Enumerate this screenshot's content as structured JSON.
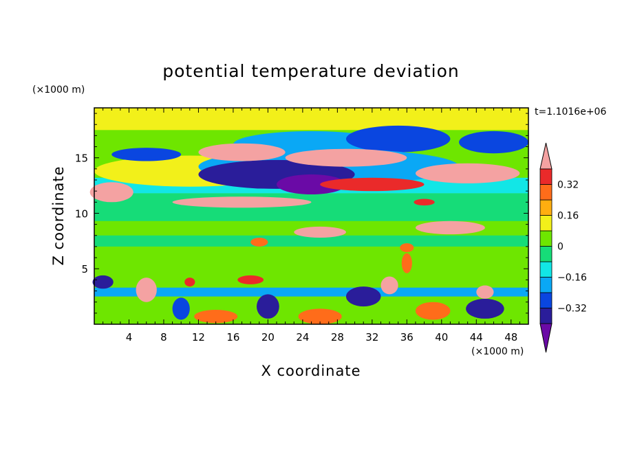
{
  "chart_data": {
    "type": "heatmap",
    "title": "potential temperature deviation",
    "xlabel": "X coordinate",
    "ylabel": "Z coordinate",
    "x_unit": "(×1000 m)",
    "y_unit": "(×1000 m)",
    "time_label": "t=1.1016e+06",
    "xlim": [
      0,
      50
    ],
    "ylim": [
      0,
      19.5
    ],
    "x_ticks": [
      4,
      8,
      12,
      16,
      20,
      24,
      28,
      32,
      36,
      40,
      44,
      48
    ],
    "y_ticks": [
      5,
      10,
      15
    ],
    "colorbar": {
      "labels": [
        "0.32",
        "0.16",
        "0",
        "-0.16",
        "-0.32"
      ],
      "label_values": [
        0.32,
        0.16,
        0,
        -0.16,
        -0.32
      ],
      "levels": [
        -0.4,
        -0.32,
        -0.24,
        -0.16,
        -0.08,
        0,
        0.08,
        0.16,
        0.24,
        0.32,
        0.4
      ],
      "colors": [
        "#6a0aa6",
        "#2a1d9a",
        "#0a46e0",
        "#0aa8f5",
        "#12e6e6",
        "#16dc78",
        "#6ee600",
        "#f2f01a",
        "#ffae10",
        "#ff6c1a",
        "#ea2a2a",
        "#f4a2a2"
      ],
      "extend": "both"
    },
    "features": [
      {
        "shape": "rect",
        "x": [
          0,
          50
        ],
        "z": [
          0,
          19.5
        ],
        "v": 0.05
      },
      {
        "shape": "rect",
        "x": [
          0,
          50
        ],
        "z": [
          4,
          9
        ],
        "v": 0.04
      },
      {
        "shape": "rect",
        "x": [
          0,
          50
        ],
        "z": [
          9.3,
          11.8
        ],
        "v": -0.05
      },
      {
        "shape": "rect",
        "x": [
          0,
          50
        ],
        "z": [
          11.8,
          13.2
        ],
        "v": -0.12
      },
      {
        "shape": "rect",
        "x": [
          0,
          50
        ],
        "z": [
          7,
          8
        ],
        "v": -0.05
      },
      {
        "shape": "rect",
        "x": [
          0,
          50
        ],
        "z": [
          17.5,
          19.5
        ],
        "v": 0.12
      },
      {
        "shape": "ellipse",
        "cx": 11,
        "cz": 13.8,
        "rx": 11,
        "rz": 1.4,
        "v": 0.1
      },
      {
        "shape": "ellipse",
        "cx": 25,
        "cz": 16.2,
        "rx": 9,
        "rz": 1.2,
        "v": -0.2
      },
      {
        "shape": "ellipse",
        "cx": 35,
        "cz": 16.7,
        "rx": 6,
        "rz": 1.2,
        "v": -0.25
      },
      {
        "shape": "ellipse",
        "cx": 46,
        "cz": 16.4,
        "rx": 4,
        "rz": 1.0,
        "v": -0.25
      },
      {
        "shape": "ellipse",
        "cx": 6,
        "cz": 15.3,
        "rx": 4,
        "rz": 0.6,
        "v": -0.3
      },
      {
        "shape": "ellipse",
        "cx": 27,
        "cz": 14.2,
        "rx": 15,
        "rz": 1.6,
        "v": -0.2
      },
      {
        "shape": "ellipse",
        "cx": 21,
        "cz": 13.5,
        "rx": 9,
        "rz": 1.3,
        "v": -0.36
      },
      {
        "shape": "ellipse",
        "cx": 25,
        "cz": 12.6,
        "rx": 4,
        "rz": 0.9,
        "v": -0.42
      },
      {
        "shape": "ellipse",
        "cx": 17,
        "cz": 15.5,
        "rx": 5,
        "rz": 0.8,
        "v": 0.4
      },
      {
        "shape": "ellipse",
        "cx": 29,
        "cz": 15.0,
        "rx": 7,
        "rz": 0.8,
        "v": 0.4
      },
      {
        "shape": "ellipse",
        "cx": 43,
        "cz": 13.6,
        "rx": 6,
        "rz": 0.9,
        "v": 0.4
      },
      {
        "shape": "ellipse",
        "cx": 2,
        "cz": 11.9,
        "rx": 2.5,
        "rz": 0.9,
        "v": 0.4
      },
      {
        "shape": "ellipse",
        "cx": 32,
        "cz": 12.6,
        "rx": 6,
        "rz": 0.6,
        "v": 0.36
      },
      {
        "shape": "ellipse",
        "cx": 17,
        "cz": 11.0,
        "rx": 8,
        "rz": 0.5,
        "v": 0.4
      },
      {
        "shape": "ellipse",
        "cx": 41,
        "cz": 8.7,
        "rx": 4,
        "rz": 0.6,
        "v": 0.4
      },
      {
        "shape": "ellipse",
        "cx": 26,
        "cz": 8.3,
        "rx": 3,
        "rz": 0.5,
        "v": 0.4
      },
      {
        "shape": "ellipse",
        "cx": 38,
        "cz": 11.0,
        "rx": 1.2,
        "rz": 0.3,
        "v": 0.36
      },
      {
        "shape": "ellipse",
        "cx": 19,
        "cz": 7.4,
        "rx": 1.0,
        "rz": 0.4,
        "v": 0.3
      },
      {
        "shape": "ellipse",
        "cx": 36,
        "cz": 6.9,
        "rx": 0.8,
        "rz": 0.4,
        "v": 0.25
      },
      {
        "shape": "rect",
        "x": [
          0,
          50
        ],
        "z": [
          2.5,
          3.3
        ],
        "v": -0.18
      },
      {
        "shape": "ellipse",
        "cx": 1,
        "cz": 3.8,
        "rx": 1.2,
        "rz": 0.6,
        "v": -0.38
      },
      {
        "shape": "ellipse",
        "cx": 20,
        "cz": 1.6,
        "rx": 1.3,
        "rz": 1.1,
        "v": -0.36
      },
      {
        "shape": "ellipse",
        "cx": 31,
        "cz": 2.5,
        "rx": 2.0,
        "rz": 0.9,
        "v": -0.36
      },
      {
        "shape": "ellipse",
        "cx": 45,
        "cz": 1.4,
        "rx": 2.2,
        "rz": 0.9,
        "v": -0.36
      },
      {
        "shape": "ellipse",
        "cx": 10,
        "cz": 1.4,
        "rx": 1.0,
        "rz": 1.0,
        "v": -0.25
      },
      {
        "shape": "ellipse",
        "cx": 14,
        "cz": 0.7,
        "rx": 2.5,
        "rz": 0.6,
        "v": 0.25
      },
      {
        "shape": "ellipse",
        "cx": 26,
        "cz": 0.7,
        "rx": 2.5,
        "rz": 0.7,
        "v": 0.25
      },
      {
        "shape": "ellipse",
        "cx": 39,
        "cz": 1.2,
        "rx": 2.0,
        "rz": 0.8,
        "v": 0.3
      },
      {
        "shape": "ellipse",
        "cx": 6,
        "cz": 3.1,
        "rx": 1.2,
        "rz": 1.1,
        "v": 0.4
      },
      {
        "shape": "ellipse",
        "cx": 34,
        "cz": 3.5,
        "rx": 1.0,
        "rz": 0.8,
        "v": 0.4
      },
      {
        "shape": "ellipse",
        "cx": 45,
        "cz": 2.9,
        "rx": 1.0,
        "rz": 0.6,
        "v": 0.4
      },
      {
        "shape": "ellipse",
        "cx": 18,
        "cz": 4.0,
        "rx": 1.5,
        "rz": 0.4,
        "v": 0.36
      },
      {
        "shape": "ellipse",
        "cx": 11,
        "cz": 3.8,
        "rx": 0.6,
        "rz": 0.4,
        "v": 0.36
      },
      {
        "shape": "ellipse",
        "cx": 36,
        "cz": 5.5,
        "rx": 0.6,
        "rz": 0.9,
        "v": 0.3
      }
    ]
  }
}
